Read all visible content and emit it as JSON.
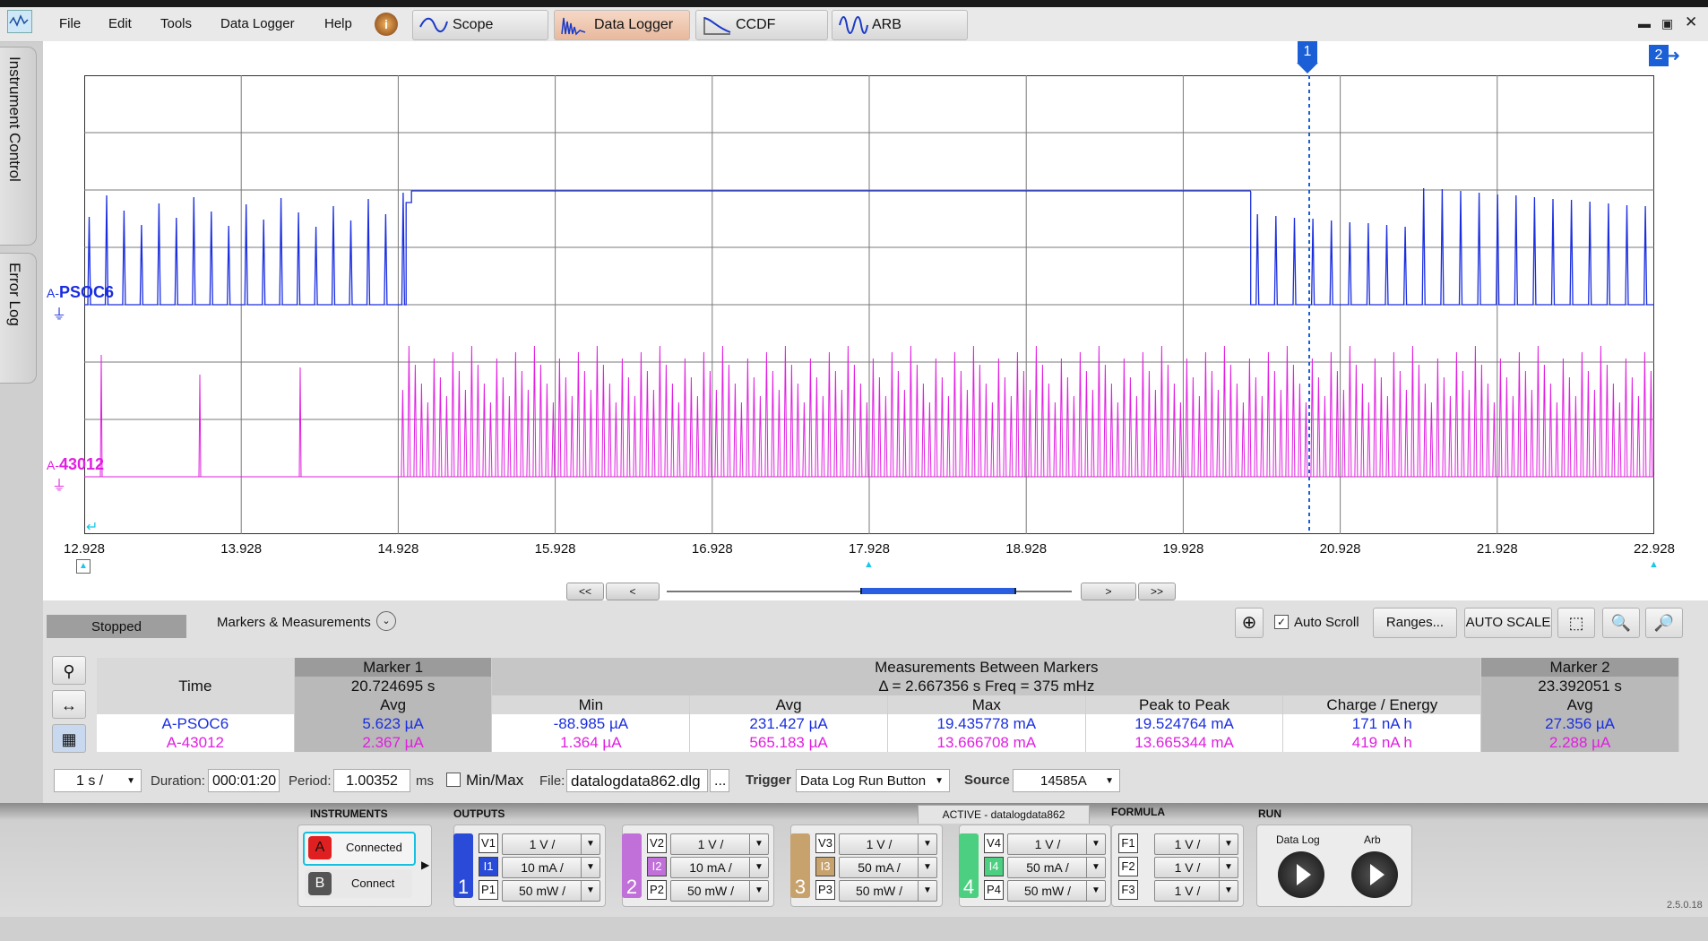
{
  "menu": {
    "file": "File",
    "edit": "Edit",
    "tools": "Tools",
    "datalogger": "Data Logger",
    "help": "Help"
  },
  "tabs": [
    {
      "label": "Scope"
    },
    {
      "label": "Data Logger"
    },
    {
      "label": "CCDF"
    },
    {
      "label": "ARB"
    }
  ],
  "side": {
    "instrument_control": "Instrument Control",
    "error_log": "Error Log"
  },
  "channels": {
    "ch1_prefix": "A-",
    "ch1_name": "PSOC6",
    "ch2_prefix": "A-",
    "ch2_name": "43012"
  },
  "colors": {
    "ch1": "#1a2ee0",
    "ch2": "#e11ee1",
    "marker": "#1a5fd6"
  },
  "markers": {
    "m1": "1",
    "m2": "2"
  },
  "x_ticks": [
    "12.928",
    "13.928",
    "14.928",
    "15.928",
    "16.928",
    "17.928",
    "18.928",
    "19.928",
    "20.928",
    "21.928",
    "22.928"
  ],
  "nav": {
    "first": "<<",
    "prev": "<",
    "next": ">",
    "last": ">>"
  },
  "panel": {
    "status": "Stopped",
    "markers_measurements": "Markers & Measurements",
    "auto_scroll": "Auto Scroll",
    "ranges": "Ranges...",
    "auto_scale": "AUTO SCALE"
  },
  "table": {
    "marker1": "Marker 1",
    "between": "Measurements Between Markers",
    "marker2": "Marker 2",
    "time_label": "Time",
    "m1_time": "20.724695 s",
    "delta": "Δ = 2.667356 s    Freq = 375 mHz",
    "m2_time": "23.392051 s",
    "avg": "Avg",
    "min": "Min",
    "max": "Max",
    "p2p": "Peak to Peak",
    "charge": "Charge / Energy",
    "rows": [
      {
        "name": "A-PSOC6",
        "m1_avg": "5.623 µA",
        "min": "-88.985 µA",
        "avg": "231.427 µA",
        "max": "19.435778 mA",
        "p2p": "19.524764 mA",
        "charge": "171 nA h",
        "m2_avg": "27.356 µA"
      },
      {
        "name": "A-43012",
        "m1_avg": "2.367 µA",
        "min": "1.364 µA",
        "avg": "565.183 µA",
        "max": "13.666708 mA",
        "p2p": "13.665344 mA",
        "charge": "419 nA h",
        "m2_avg": "2.288 µA"
      }
    ]
  },
  "settings": {
    "timebase": "1 s /",
    "duration_label": "Duration:",
    "duration": "000:01:20",
    "period_label": "Period:",
    "period": "1.00352",
    "period_unit": "ms",
    "minmax": "Min/Max",
    "file_label": "File:",
    "file": "datalogdata862.dlg",
    "file_btn": "...",
    "trigger_label": "Trigger",
    "trigger": "Data Log Run Button",
    "source_label": "Source",
    "source": "14585A"
  },
  "bottom": {
    "instruments": "INSTRUMENTS",
    "outputs": "OUTPUTS",
    "active": "ACTIVE - datalogdata862",
    "formula": "FORMULA",
    "run": "RUN",
    "inst_a": "A",
    "inst_a_state": "Connected",
    "inst_b": "B",
    "inst_b_state": "Connect",
    "outs": [
      {
        "num": "1",
        "v": "V1",
        "i": "I1",
        "p": "P1",
        "vval": "1 V /",
        "ival": "10 mA /",
        "pval": "50 mW /",
        "color": "#2a4bd8"
      },
      {
        "num": "2",
        "v": "V2",
        "i": "I2",
        "p": "P2",
        "vval": "1 V /",
        "ival": "10 mA /",
        "pval": "50 mW /",
        "color": "#c070d8"
      },
      {
        "num": "3",
        "v": "V3",
        "i": "I3",
        "p": "P3",
        "vval": "1 V /",
        "ival": "50 mA /",
        "pval": "50 mW /",
        "color": "#c8a26c"
      },
      {
        "num": "4",
        "v": "V4",
        "i": "I4",
        "p": "P4",
        "vval": "1 V /",
        "ival": "50 mA /",
        "pval": "50 mW /",
        "color": "#4ccf80"
      }
    ],
    "formulas": [
      {
        "f": "F1",
        "val": "1 V /"
      },
      {
        "f": "F2",
        "val": "1 V /"
      },
      {
        "f": "F3",
        "val": "1 V /"
      }
    ],
    "datalog": "Data Log",
    "arb": "Arb",
    "version": "2.5.0.18"
  }
}
